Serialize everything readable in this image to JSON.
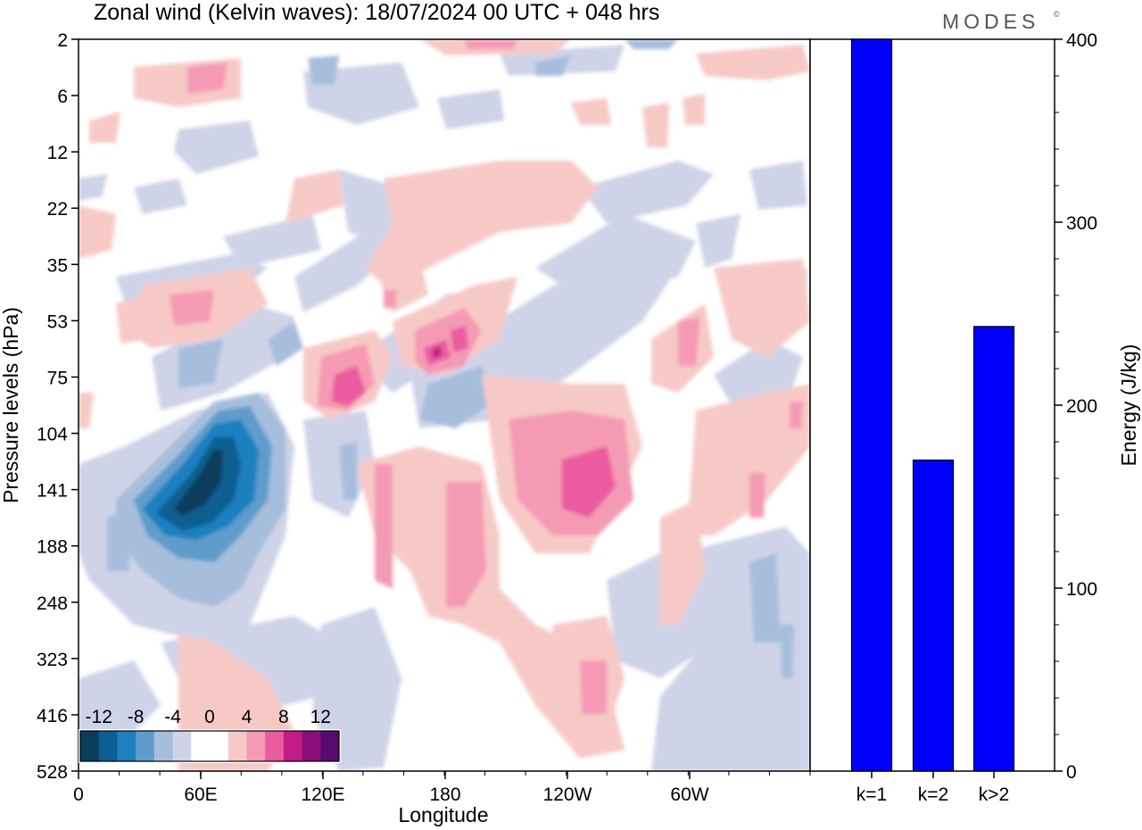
{
  "title": "Zonal wind (Kelvin waves):  18/07/2024  00 UTC  + 048 hrs",
  "logo": "MODES",
  "logo_mark": "©",
  "hovmoller": {
    "xlabel": "Longitude",
    "ylabel": "Pressure levels (hPa)",
    "x_tick_labels": [
      "0",
      "60E",
      "120E",
      "180",
      "120W",
      "60W"
    ],
    "y_tick_labels": [
      "2",
      "6",
      "12",
      "22",
      "35",
      "53",
      "75",
      "104",
      "141",
      "188",
      "248",
      "323",
      "416",
      "528"
    ],
    "colorbar_labels": [
      "-12",
      "-8",
      "-4",
      "0",
      "4",
      "8",
      "12"
    ],
    "colorbar_colors": [
      "#0b3d5c",
      "#0e5f91",
      "#1f7fbf",
      "#5f9ccc",
      "#a6bedc",
      "#cfd3e8",
      "#ffffff",
      "#ffffff",
      "#f7c9c6",
      "#f59ab4",
      "#ea5b9f",
      "#c41a87",
      "#8a0f7a",
      "#560b6e"
    ]
  },
  "chart_data": {
    "type": "bar",
    "title": "",
    "categories": [
      "k=1",
      "k=2",
      "k>2"
    ],
    "values": [
      400,
      170,
      243
    ],
    "ylabel": "Energy (J/kg)",
    "ylim": [
      0,
      400
    ],
    "y_ticks": [
      0,
      100,
      200,
      300,
      400
    ],
    "bar_color": "#0000ff"
  }
}
